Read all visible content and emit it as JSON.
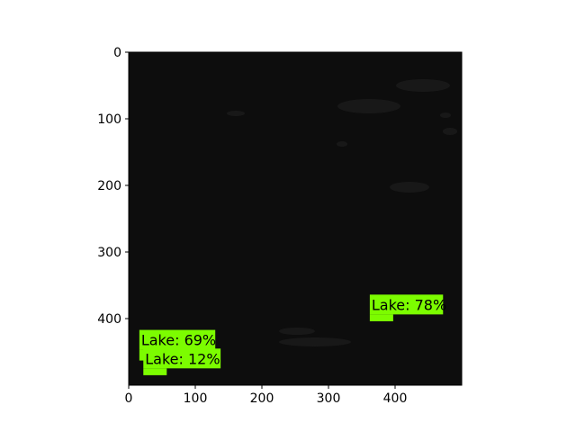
{
  "image": {
    "description_colors": {
      "background": "#0d0d0d",
      "speckle": "#1b1b1b",
      "box": "#7cfc00"
    },
    "x_ticks": [
      "0",
      "100",
      "200",
      "300",
      "400"
    ],
    "y_ticks": [
      "0",
      "100",
      "200",
      "300",
      "400"
    ],
    "x_tick_values": [
      0,
      100,
      200,
      300,
      400
    ],
    "y_tick_values": [
      0,
      100,
      200,
      300,
      400
    ],
    "extent": [
      500,
      500
    ]
  },
  "detections": [
    {
      "label": "Lake: 78%",
      "x0": 362,
      "y0": 364,
      "x1": 472,
      "y1": 404
    },
    {
      "label": "Lake: 69%",
      "x0": 16,
      "y0": 417,
      "x1": 130,
      "y1": 470
    },
    {
      "label": "Lake: 12%",
      "x0": 22,
      "y0": 445,
      "x1": 138,
      "y1": 485
    }
  ]
}
